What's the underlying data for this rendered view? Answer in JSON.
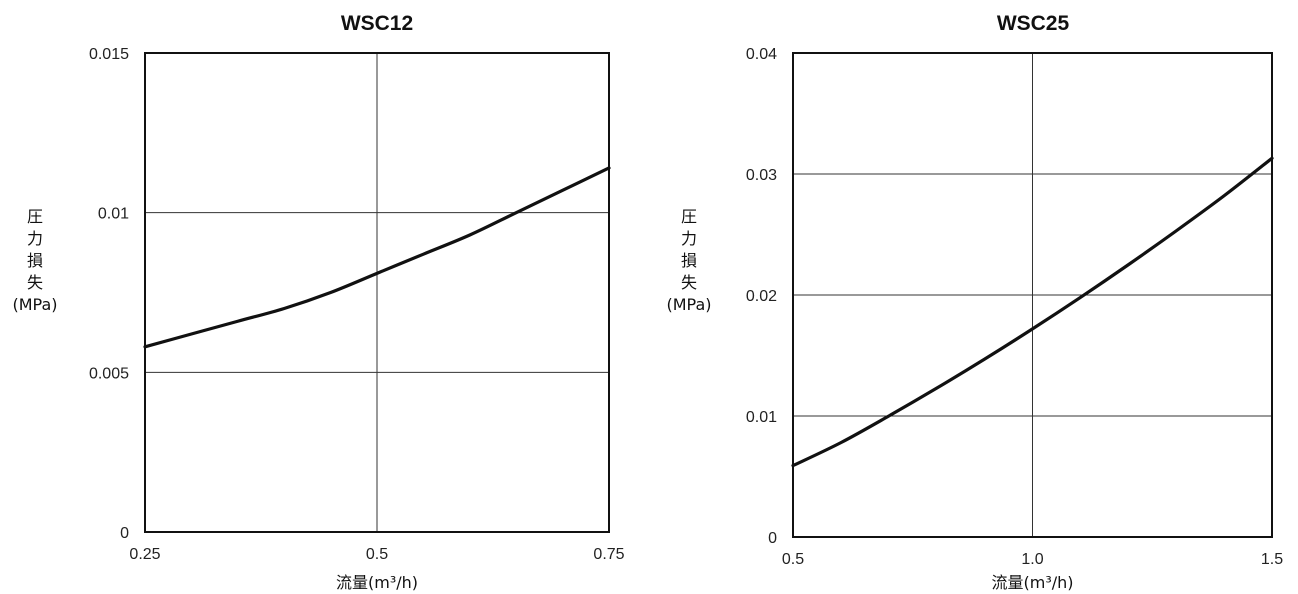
{
  "chart_data": [
    {
      "type": "line",
      "title": "WSC12",
      "xlabel": "流量(m³/h)",
      "ylabel": [
        "圧",
        "力",
        "損",
        "失",
        "(MPa)"
      ],
      "xlim": [
        0.25,
        0.75
      ],
      "ylim": [
        0,
        0.015
      ],
      "x_ticks": [
        0.25,
        0.5,
        0.75
      ],
      "x_tick_labels": [
        "0.25",
        "0.5",
        "0.75"
      ],
      "y_ticks": [
        0,
        0.005,
        0.01,
        0.015
      ],
      "y_tick_labels": [
        "0",
        "0.005",
        "0.01",
        "0.015"
      ],
      "grid": true,
      "series": [
        {
          "x": [
            0.25,
            0.3,
            0.35,
            0.4,
            0.45,
            0.5,
            0.55,
            0.6,
            0.65,
            0.7,
            0.75
          ],
          "y": [
            0.0058,
            0.0062,
            0.0066,
            0.007,
            0.0075,
            0.0081,
            0.0087,
            0.0093,
            0.01,
            0.0107,
            0.0114
          ]
        }
      ]
    },
    {
      "type": "line",
      "title": "WSC25",
      "xlabel": "流量(m³/h)",
      "ylabel": [
        "圧",
        "力",
        "損",
        "失",
        "(MPa)"
      ],
      "xlim": [
        0.5,
        1.5
      ],
      "ylim": [
        0,
        0.04
      ],
      "x_ticks": [
        0.5,
        1.0,
        1.5
      ],
      "x_tick_labels": [
        "0.5",
        "1.0",
        "1.5"
      ],
      "y_ticks": [
        0,
        0.01,
        0.02,
        0.03,
        0.04
      ],
      "y_tick_labels": [
        "0",
        "0.01",
        "0.02",
        "0.03",
        "0.04"
      ],
      "grid": true,
      "series": [
        {
          "x": [
            0.5,
            0.6,
            0.7,
            0.8,
            0.9,
            1.0,
            1.1,
            1.2,
            1.3,
            1.4,
            1.5
          ],
          "y": [
            0.0059,
            0.0078,
            0.01,
            0.0123,
            0.0147,
            0.0172,
            0.0198,
            0.0225,
            0.0253,
            0.0282,
            0.0313
          ]
        }
      ]
    }
  ]
}
